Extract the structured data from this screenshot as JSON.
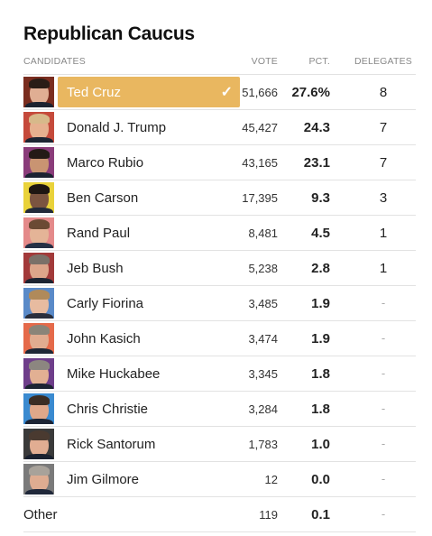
{
  "title": "Republican Caucus",
  "headers": {
    "candidates": "CANDIDATES",
    "vote": "VOTE",
    "pct": "PCT.",
    "delegates": "DELEGATES"
  },
  "winner_color": "#e9b760",
  "check_symbol": "✓",
  "rows": [
    {
      "name": "Ted Cruz",
      "vote": "51,666",
      "pct": "27.6%",
      "delegates": "8",
      "winner": true,
      "photo_bg": "#7a2d1f",
      "hair": "#2a1d16",
      "skin": "#e0ae93",
      "suit": "#1c2230"
    },
    {
      "name": "Donald J. Trump",
      "vote": "45,427",
      "pct": "24.3",
      "delegates": "7",
      "photo_bg": "#c54a3b",
      "hair": "#d7b98a",
      "skin": "#e6b08f",
      "suit": "#1d2533"
    },
    {
      "name": "Marco Rubio",
      "vote": "43,165",
      "pct": "23.1",
      "delegates": "7",
      "photo_bg": "#8a3c7a",
      "hair": "#241a16",
      "skin": "#c99472",
      "suit": "#1b2232"
    },
    {
      "name": "Ben Carson",
      "vote": "17,395",
      "pct": "9.3",
      "delegates": "3",
      "photo_bg": "#e9d23a",
      "hair": "#1e1612",
      "skin": "#7b5440",
      "suit": "#222a3a"
    },
    {
      "name": "Rand Paul",
      "vote": "8,481",
      "pct": "4.5",
      "delegates": "1",
      "photo_bg": "#e48a8a",
      "hair": "#6b4a34",
      "skin": "#e4b497",
      "suit": "#253045"
    },
    {
      "name": "Jeb Bush",
      "vote": "5,238",
      "pct": "2.8",
      "delegates": "1",
      "photo_bg": "#a23a3a",
      "hair": "#7a7068",
      "skin": "#dca58a",
      "suit": "#1c2432"
    },
    {
      "name": "Carly Fiorina",
      "vote": "3,485",
      "pct": "1.9",
      "delegates": "-",
      "photo_bg": "#5a8ac8",
      "hair": "#b08a5a",
      "skin": "#e7bba0",
      "suit": "#2a2f3d"
    },
    {
      "name": "John Kasich",
      "vote": "3,474",
      "pct": "1.9",
      "delegates": "-",
      "photo_bg": "#e56a4a",
      "hair": "#8a8478",
      "skin": "#e0ac90",
      "suit": "#1e2736"
    },
    {
      "name": "Mike Huckabee",
      "vote": "3,345",
      "pct": "1.8",
      "delegates": "-",
      "photo_bg": "#6e3e8a",
      "hair": "#8c8680",
      "skin": "#e2b093",
      "suit": "#1d2433"
    },
    {
      "name": "Chris Christie",
      "vote": "3,284",
      "pct": "1.8",
      "delegates": "-",
      "photo_bg": "#3a8ad0",
      "hair": "#3b2d24",
      "skin": "#e0a88a",
      "suit": "#1c2434"
    },
    {
      "name": "Rick Santorum",
      "vote": "1,783",
      "pct": "1.0",
      "delegates": "-",
      "photo_bg": "#3a3a3a",
      "hair": "#4a3a30",
      "skin": "#e1ad92",
      "suit": "#1a2130"
    },
    {
      "name": "Jim Gilmore",
      "vote": "12",
      "pct": "0.0",
      "delegates": "-",
      "photo_bg": "#7a7a7a",
      "hair": "#a8a29a",
      "skin": "#deac91",
      "suit": "#20283a"
    },
    {
      "name": "Other",
      "vote": "119",
      "pct": "0.1",
      "delegates": "-",
      "other": true
    }
  ]
}
